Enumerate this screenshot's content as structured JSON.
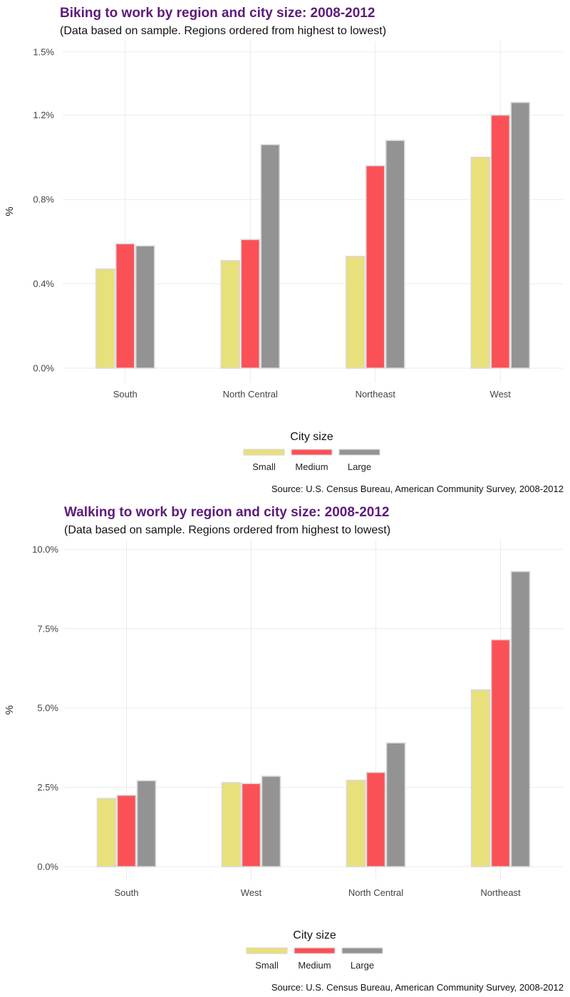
{
  "chart_data": [
    {
      "type": "bar",
      "title": "Biking to work by region and city size: 2008-2012",
      "subtitle": "(Data based on sample. Regions ordered from highest to lowest)",
      "ylabel": "%",
      "xlabel": "",
      "ylim": [
        0,
        1.55
      ],
      "yticks": [
        0.0,
        0.4,
        0.8,
        1.2,
        1.5
      ],
      "ytick_labels": [
        "0.0%",
        "0.4%",
        "0.8%",
        "1.2%",
        "1.5%"
      ],
      "categories": [
        "South",
        "North Central",
        "Northeast",
        "West"
      ],
      "series": [
        {
          "name": "Small",
          "color": "#e8e07a",
          "values": [
            0.47,
            0.51,
            0.53,
            1.0
          ]
        },
        {
          "name": "Medium",
          "color": "#fa5157",
          "values": [
            0.59,
            0.61,
            0.96,
            1.2
          ]
        },
        {
          "name": "Large",
          "color": "#939393",
          "values": [
            0.58,
            1.06,
            1.08,
            1.26
          ]
        }
      ],
      "legend_title": "City size",
      "legend_placement": "bottom",
      "grid": true,
      "caption": "Source: U.S. Census Bureau, American Community Survey, 2008-2012"
    },
    {
      "type": "bar",
      "title": "Walking to work by region and city size: 2008-2012",
      "subtitle": "(Data based on sample. Regions ordered from highest to lowest)",
      "ylabel": "%",
      "xlabel": "",
      "ylim": [
        0,
        10.3
      ],
      "yticks": [
        0.0,
        2.5,
        5.0,
        7.5,
        10.0
      ],
      "ytick_labels": [
        "0.0%",
        "2.5%",
        "5.0%",
        "7.5%",
        "10.0%"
      ],
      "categories": [
        "South",
        "West",
        "North Central",
        "Northeast"
      ],
      "series": [
        {
          "name": "Small",
          "color": "#e8e07a",
          "values": [
            2.15,
            2.65,
            2.72,
            5.57
          ]
        },
        {
          "name": "Medium",
          "color": "#fa5157",
          "values": [
            2.25,
            2.62,
            2.97,
            7.15
          ]
        },
        {
          "name": "Large",
          "color": "#939393",
          "values": [
            2.71,
            2.85,
            3.9,
            9.3
          ]
        }
      ],
      "legend_title": "City size",
      "legend_placement": "bottom",
      "grid": true,
      "caption": "Source: U.S. Census Bureau, American Community Survey, 2008-2012"
    }
  ]
}
